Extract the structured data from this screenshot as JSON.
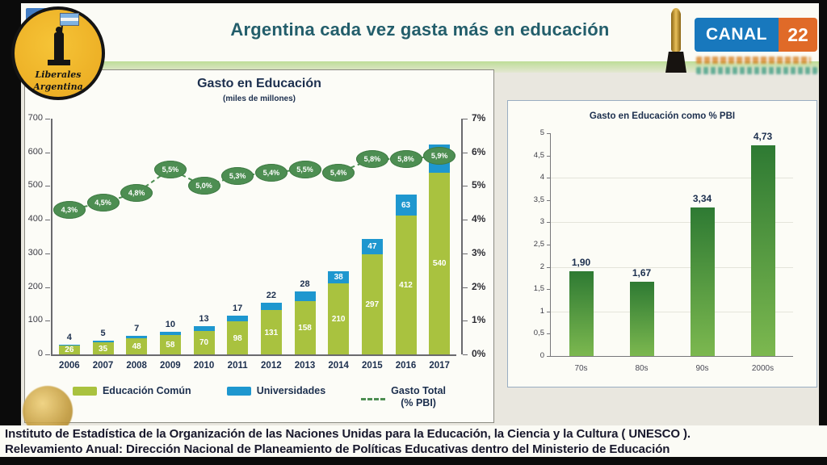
{
  "header": {
    "title": "Argentina cada vez gasta más en educación"
  },
  "channel": {
    "name": "CANAL",
    "number": "22"
  },
  "logo": {
    "line1": "Liberales",
    "line2": "Argentina"
  },
  "source": {
    "line1": "Instituto de Estadística de la Organización de las Naciones Unidas para la Educación, la Ciencia y la Cultura ( UNESCO ).",
    "line2": "Relevamiento Anual: Dirección Nacional de Planeamiento de Políticas Educativas dentro del Ministerio de Educación"
  },
  "chart_data": [
    {
      "type": "bar",
      "title": "Gasto en Educación",
      "subtitle": "(miles de millones)",
      "categories": [
        "2006",
        "2007",
        "2008",
        "2009",
        "2010",
        "2011",
        "2012",
        "2013",
        "2014",
        "2015",
        "2016",
        "2017"
      ],
      "series": [
        {
          "name": "Educación Común",
          "color": "#a9c23f",
          "values": [
            26,
            35,
            48,
            58,
            70,
            98,
            131,
            158,
            210,
            297,
            412,
            540
          ]
        },
        {
          "name": "Universidades",
          "color": "#1e97cf",
          "values": [
            4,
            5,
            7,
            10,
            13,
            17,
            22,
            28,
            38,
            47,
            63,
            83
          ]
        },
        {
          "name": "Gasto Total",
          "type": "line",
          "color": "#4d8e52",
          "values": [
            4.3,
            4.5,
            4.8,
            5.5,
            5.0,
            5.3,
            5.4,
            5.5,
            5.4,
            5.8,
            5.8,
            5.9
          ],
          "labels": [
            "4,3%",
            "4,5%",
            "4,8%",
            "5,5%",
            "5,0%",
            "5,3%",
            "5,4%",
            "5,5%",
            "5,4%",
            "5,8%",
            "5,8%",
            "5,9%"
          ]
        }
      ],
      "pbi_note": "(% PBI)",
      "univ_label_position": [
        "above",
        "above",
        "above",
        "above",
        "above",
        "above",
        "above",
        "above",
        "inside",
        "inside",
        "inside",
        "inside"
      ],
      "left_axis": {
        "min": 0,
        "max": 700,
        "ticks": [
          "700",
          "600",
          "500",
          "400",
          "300",
          "200",
          "100",
          "0"
        ]
      },
      "right_axis": {
        "min": 0,
        "max": 7,
        "ticks": [
          "7%",
          "6%",
          "5%",
          "4%",
          "3%",
          "2%",
          "1%",
          "0%"
        ]
      },
      "legend_position": "bottom",
      "grid": false
    },
    {
      "type": "bar",
      "title": "Gasto en Educación como % PBI",
      "categories": [
        "70s",
        "80s",
        "90s",
        "2000s"
      ],
      "values": [
        1.9,
        1.67,
        3.34,
        4.73
      ],
      "value_labels": [
        "1,90",
        "1,67",
        "3,34",
        "4,73"
      ],
      "ylim": [
        0,
        5
      ],
      "yticks": [
        "5",
        "4,5",
        "4",
        "3,5",
        "3",
        "2,5",
        "2",
        "1,5",
        "1",
        "0,5",
        "0"
      ],
      "grid": true
    }
  ]
}
